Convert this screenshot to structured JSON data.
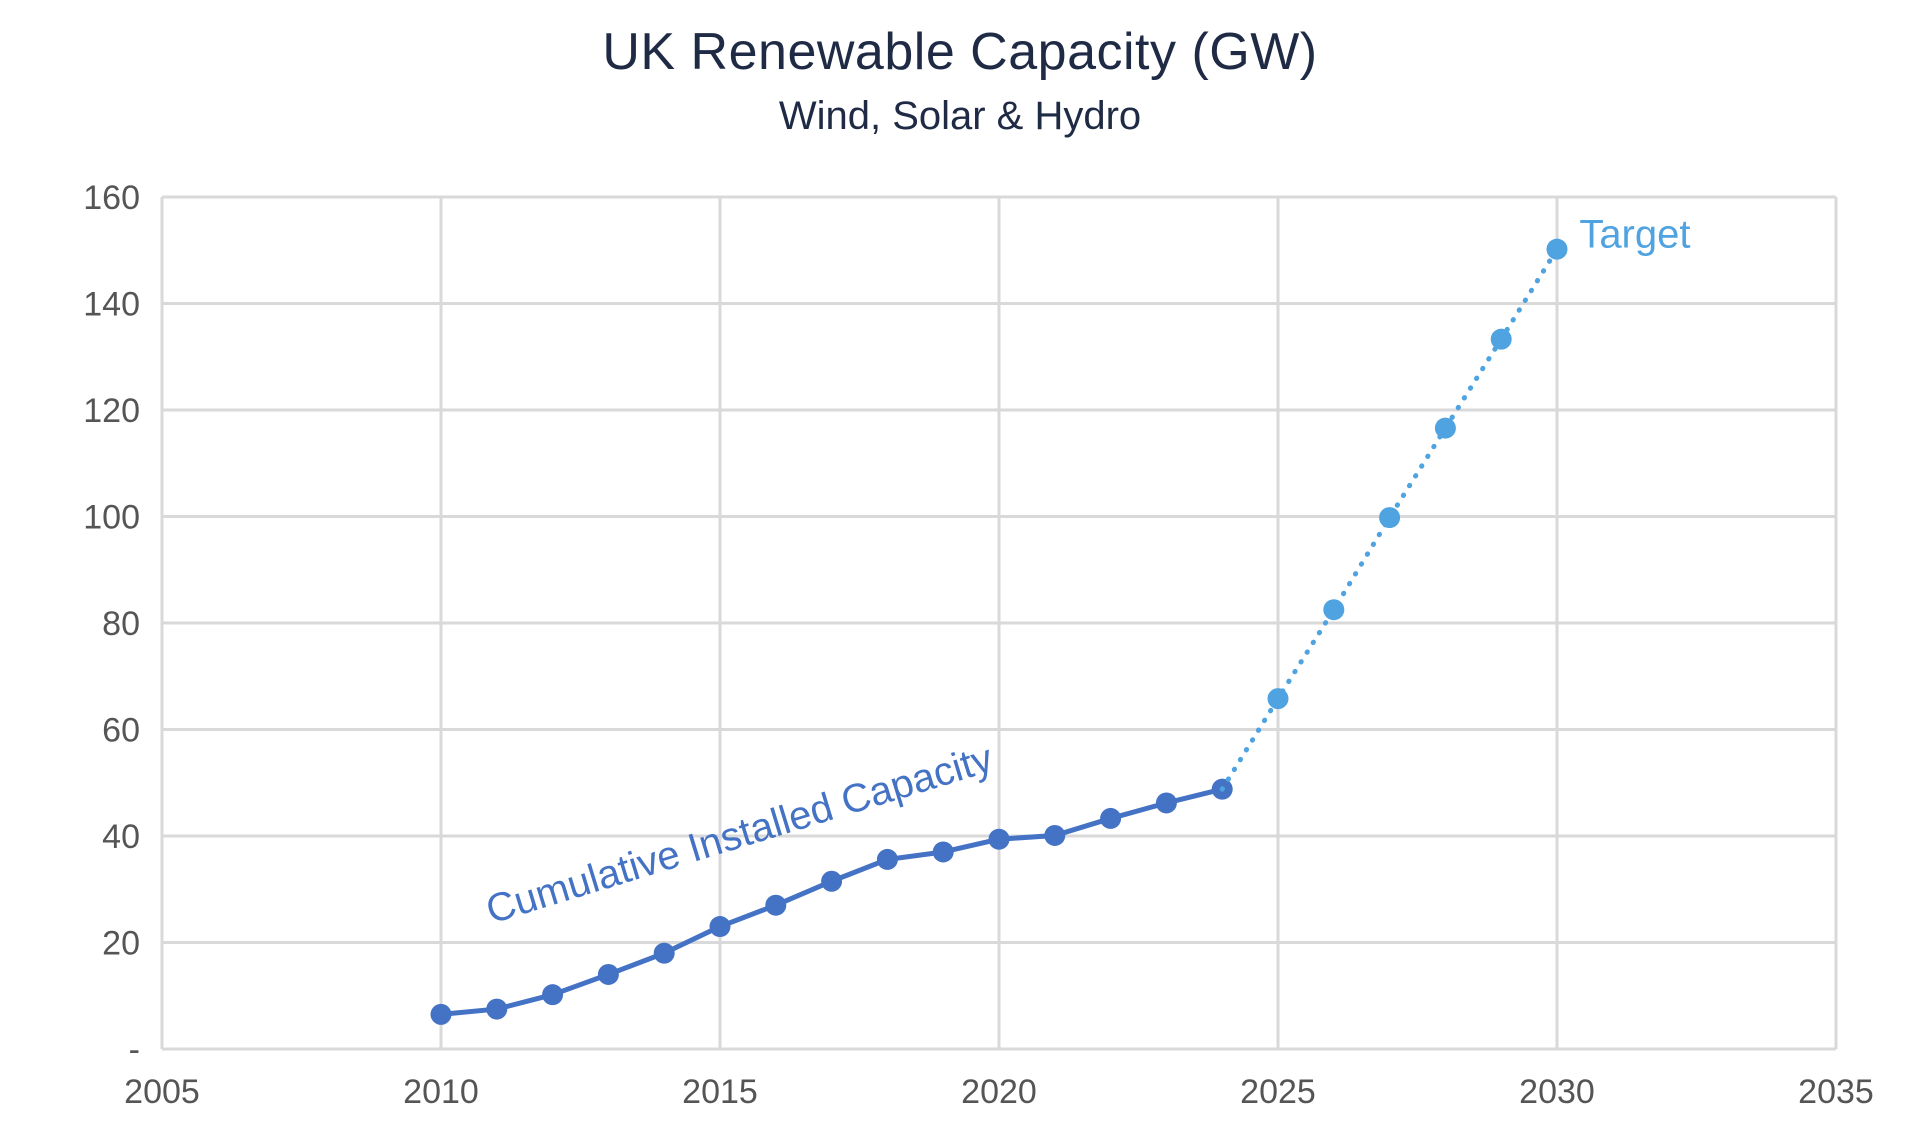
{
  "chart_data": {
    "type": "line",
    "title": "UK Renewable Capacity (GW)",
    "subtitle": "Wind, Solar & Hydro",
    "xlabel": "",
    "ylabel": "",
    "xlim": [
      2005,
      2035
    ],
    "ylim": [
      0,
      160
    ],
    "x_ticks": [
      2005,
      2010,
      2015,
      2020,
      2025,
      2030,
      2035
    ],
    "y_ticks": [
      {
        "value": 0,
        "label": "-"
      },
      {
        "value": 20,
        "label": "20"
      },
      {
        "value": 40,
        "label": "40"
      },
      {
        "value": 60,
        "label": "60"
      },
      {
        "value": 80,
        "label": "80"
      },
      {
        "value": 100,
        "label": "100"
      },
      {
        "value": 120,
        "label": "120"
      },
      {
        "value": 140,
        "label": "140"
      },
      {
        "value": 160,
        "label": "160"
      }
    ],
    "grid": true,
    "series": [
      {
        "name": "Cumulative Installed Capacity",
        "color": "#4472c4",
        "style": "solid",
        "x": [
          2010,
          2011,
          2012,
          2013,
          2014,
          2015,
          2016,
          2017,
          2018,
          2019,
          2020,
          2021,
          2022,
          2023,
          2024
        ],
        "y": [
          6.5,
          7.5,
          10.2,
          14,
          18,
          23,
          27,
          31.5,
          35.6,
          37,
          39.4,
          40.1,
          43.3,
          46.2,
          48.8
        ]
      },
      {
        "name": "Target",
        "color": "#4fa3e0",
        "style": "dotted",
        "x": [
          2024,
          2025,
          2026,
          2027,
          2028,
          2029,
          2030
        ],
        "y": [
          48.8,
          65.8,
          82.5,
          99.8,
          116.6,
          133.3,
          150.2
        ]
      }
    ],
    "annotations": [
      {
        "text": "Cumulative Installed Capacity",
        "color": "#4472c4",
        "x": 2010.9,
        "y": 23.5,
        "rotation": -17
      },
      {
        "text": "Target",
        "color": "#4fa3e0",
        "x": 2030.4,
        "y": 150.5,
        "rotation": 0
      }
    ]
  }
}
